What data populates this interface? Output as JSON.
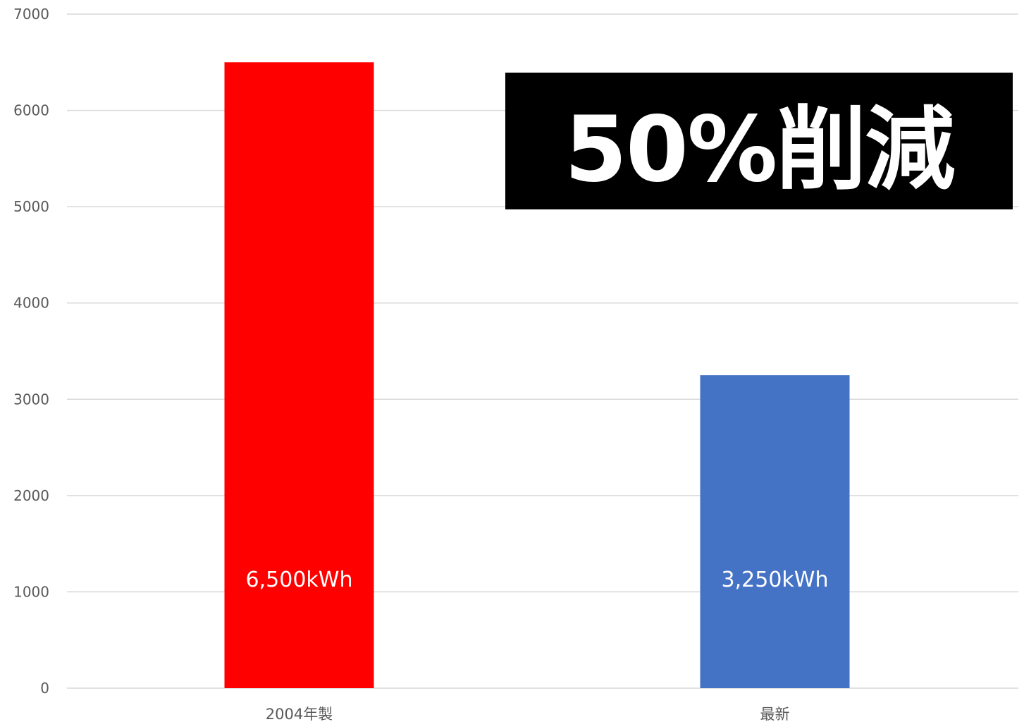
{
  "chart_data": {
    "type": "bar",
    "categories": [
      "2004年製",
      "最新"
    ],
    "values": [
      6500,
      3250
    ],
    "data_labels": [
      "6,500kWh",
      "3,250kWh"
    ],
    "bar_colors": [
      "#ff0000",
      "#4472c4"
    ],
    "title": "",
    "xlabel": "",
    "ylabel": "",
    "ylim": [
      0,
      7000
    ],
    "yticks": [
      0,
      1000,
      2000,
      3000,
      4000,
      5000,
      6000,
      7000
    ],
    "grid": true,
    "legend": "none",
    "annotations": [
      "50%削減"
    ]
  },
  "callout": {
    "text": "50%削減",
    "background": "#000000",
    "color": "#ffffff"
  }
}
